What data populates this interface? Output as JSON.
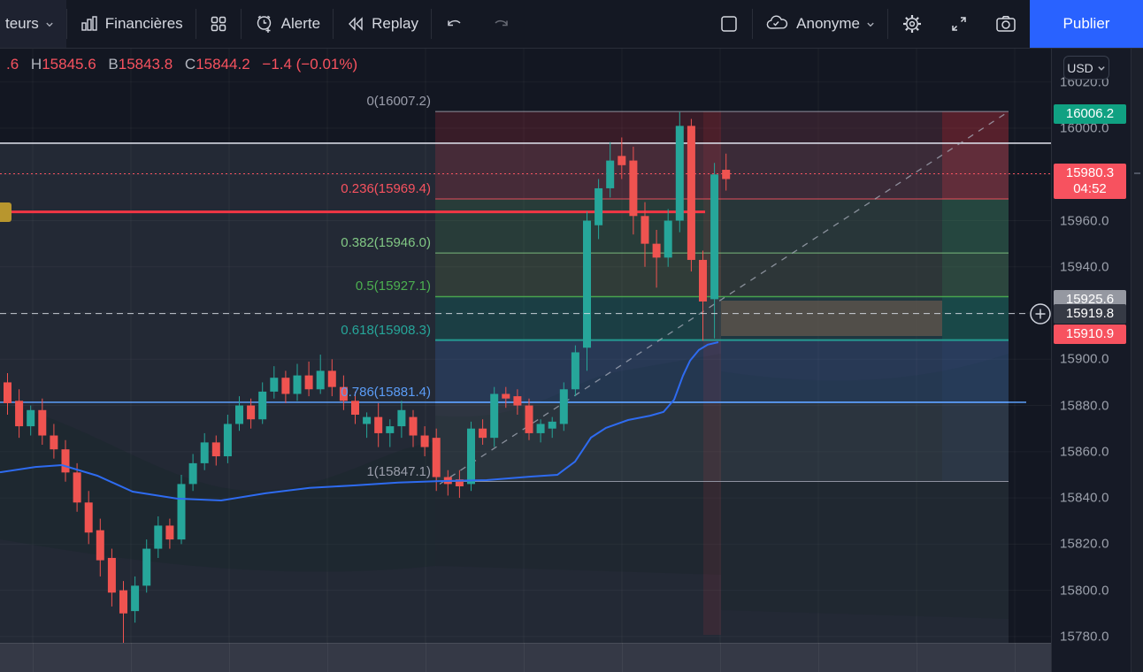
{
  "toolbar": {
    "indicators_label": "teurs",
    "financials_label": "Financières",
    "alert_label": "Alerte",
    "replay_label": "Replay",
    "account_label": "Anonyme",
    "publish_label": "Publier"
  },
  "ohlc": {
    "open_part": ".6",
    "high_key": "H",
    "high": "15845.6",
    "low_key": "B",
    "low": "15843.8",
    "close_key": "C",
    "close": "15844.2",
    "change": "−1.4 (−0.01%)"
  },
  "price_axis": {
    "currency": "USD",
    "ticks": [
      {
        "label": "16020.0",
        "price": 16020
      },
      {
        "label": "16000.0",
        "price": 16000
      },
      {
        "label": "15960.0",
        "price": 15960
      },
      {
        "label": "15940.0",
        "price": 15940
      },
      {
        "label": "15900.0",
        "price": 15900
      },
      {
        "label": "15880.0",
        "price": 15880
      },
      {
        "label": "15860.0",
        "price": 15860
      },
      {
        "label": "15840.0",
        "price": 15840
      },
      {
        "label": "15820.0",
        "price": 15820
      },
      {
        "label": "15800.0",
        "price": 15800
      },
      {
        "label": "15780.0",
        "price": 15780
      }
    ],
    "badges": [
      {
        "name": "high-price-badge",
        "text": "16006.2",
        "price": 16006.2,
        "color": "#10a182"
      },
      {
        "name": "last-price-badge",
        "text": "15980.3",
        "subtext": "04:52",
        "price": 15980.3,
        "color": "#f7525f"
      },
      {
        "name": "countdown-badge",
        "text": "15925.6",
        "price": 15925.6,
        "color": "#9598a1"
      },
      {
        "name": "crosshair-price-badge",
        "text": "15919.8",
        "price": 15919.8,
        "color": "#363a45"
      },
      {
        "name": "alert-price-badge",
        "text": "15910.9",
        "price": 15910.9,
        "color": "#f7525f"
      }
    ]
  },
  "fib": {
    "levels": [
      {
        "label": "0(16007.2)",
        "price": 16007.2,
        "color": "#9b9eab",
        "width": 1
      },
      {
        "label": "0.236(15969.4)",
        "price": 15969.4,
        "color": "#f7525f",
        "width": 1
      },
      {
        "label": "0.382(15946.0)",
        "price": 15946.0,
        "color": "#81c784",
        "width": 1
      },
      {
        "label": "0.5(15927.1)",
        "price": 15927.1,
        "color": "#4caf50",
        "width": 1.6
      },
      {
        "label": "0.618(15908.3)",
        "price": 15908.3,
        "color": "#26a69a",
        "width": 2
      },
      {
        "label": "0.786(15881.4)",
        "price": 15881.4,
        "color": "#5b9cf6",
        "width": 1.6
      },
      {
        "label": "1(15847.1)",
        "price": 15847.1,
        "color": "#9b9eab",
        "width": 1
      }
    ]
  },
  "lines": {
    "red_horizontal_price": 15963.8,
    "dotted_last_price": 15980.3,
    "crosshair_price": 15919.8,
    "white_box_top_price": 15993.5,
    "blue_horizontal_price": 15881.4
  },
  "chart_data": {
    "type": "candlestick",
    "title": "",
    "ylabel": "USD",
    "ylim": [
      15772,
      16025
    ],
    "grid": true,
    "fib_retracement": {
      "from_price": 15847.1,
      "to_price": 16007.2
    },
    "candles": [
      [
        15890,
        15894,
        15876,
        15881
      ],
      [
        15882,
        15887,
        15866,
        15871
      ],
      [
        15871,
        15880,
        15867,
        15878
      ],
      [
        15878,
        15883,
        15863,
        15867
      ],
      [
        15867,
        15872,
        15857,
        15861
      ],
      [
        15861,
        15865,
        15847,
        15851
      ],
      [
        15851,
        15855,
        15834,
        15838
      ],
      [
        15838,
        15843,
        15820,
        15825
      ],
      [
        15826,
        15831,
        15806,
        15813
      ],
      [
        15814,
        15818,
        15793,
        15799
      ],
      [
        15800,
        15804,
        15777,
        15790
      ],
      [
        15791,
        15806,
        15786,
        15802
      ],
      [
        15802,
        15822,
        15799,
        15818
      ],
      [
        15818,
        15832,
        15814,
        15828
      ],
      [
        15828,
        15831,
        15818,
        15822
      ],
      [
        15822,
        15850,
        15820,
        15846
      ],
      [
        15846,
        15859,
        15843,
        15855
      ],
      [
        15855,
        15868,
        15852,
        15864
      ],
      [
        15864,
        15867,
        15854,
        15858
      ],
      [
        15858,
        15876,
        15855,
        15872
      ],
      [
        15872,
        15884,
        15869,
        15880
      ],
      [
        15880,
        15883,
        15870,
        15874
      ],
      [
        15874,
        15890,
        15872,
        15886
      ],
      [
        15886,
        15897,
        15883,
        15892
      ],
      [
        15892,
        15895,
        15881,
        15885
      ],
      [
        15885,
        15898,
        15882,
        15893
      ],
      [
        15893,
        15899,
        15884,
        15887
      ],
      [
        15887,
        15902,
        15885,
        15895
      ],
      [
        15895,
        15900,
        15884,
        15888
      ],
      [
        15888,
        15893,
        15878,
        15882
      ],
      [
        15882,
        15886,
        15872,
        15876
      ],
      [
        15872,
        15877,
        15866,
        15875
      ],
      [
        15875,
        15881,
        15862,
        15868
      ],
      [
        15868,
        15874,
        15862,
        15871
      ],
      [
        15871,
        15882,
        15866,
        15878
      ],
      [
        15875,
        15878,
        15862,
        15867
      ],
      [
        15867,
        15871,
        15858,
        15862
      ],
      [
        15866,
        15870,
        15843,
        15849
      ],
      [
        15849,
        15852,
        15841,
        15846
      ],
      [
        15848,
        15852,
        15840,
        15845
      ],
      [
        15846,
        15873,
        15843,
        15870
      ],
      [
        15870,
        15874,
        15863,
        15866
      ],
      [
        15866,
        15888,
        15862,
        15885
      ],
      [
        15885,
        15888,
        15879,
        15883
      ],
      [
        15884,
        15887,
        15876,
        15880
      ],
      [
        15880,
        15883,
        15865,
        15868
      ],
      [
        15868,
        15874,
        15864,
        15872
      ],
      [
        15870,
        15875,
        15866,
        15873
      ],
      [
        15872,
        15890,
        15869,
        15887
      ],
      [
        15887,
        15906,
        15884,
        15903
      ],
      [
        15905,
        15964,
        15895,
        15960
      ],
      [
        15958,
        15978,
        15952,
        15974
      ],
      [
        15974,
        15994,
        15970,
        15986
      ],
      [
        15988,
        15996,
        15978,
        15984
      ],
      [
        15986,
        15992,
        15954,
        15962
      ],
      [
        15962,
        15968,
        15940,
        15950
      ],
      [
        15950,
        15956,
        15931,
        15944
      ],
      [
        15944,
        15965,
        15940,
        15960
      ],
      [
        15960,
        16007,
        15955,
        16001
      ],
      [
        16001,
        16004,
        15938,
        15943
      ],
      [
        15943,
        15947,
        15908,
        15925
      ],
      [
        15926,
        15985,
        15909,
        15980
      ],
      [
        15982,
        15989,
        15973,
        15978
      ]
    ],
    "ma_blue": [
      [
        0,
        15851.1
      ],
      [
        40,
        15853.4
      ],
      [
        70,
        15854.2
      ],
      [
        110,
        15849.6
      ],
      [
        150,
        15842.7
      ],
      [
        200,
        15839.7
      ],
      [
        250,
        15838.9
      ],
      [
        300,
        15842.0
      ],
      [
        350,
        15844.3
      ],
      [
        400,
        15845.4
      ],
      [
        450,
        15846.6
      ],
      [
        500,
        15847.3
      ],
      [
        550,
        15847.7
      ],
      [
        600,
        15849.2
      ],
      [
        630,
        15850.0
      ],
      [
        650,
        15855.7
      ],
      [
        668,
        15866.1
      ],
      [
        685,
        15870.3
      ],
      [
        710,
        15873.7
      ],
      [
        735,
        15875.6
      ],
      [
        750,
        15877.2
      ],
      [
        762,
        15882.5
      ],
      [
        772,
        15892.9
      ],
      [
        780,
        15899.4
      ],
      [
        790,
        15904.0
      ],
      [
        800,
        15906.3
      ],
      [
        812,
        15907.4
      ]
    ]
  },
  "colors": {
    "candle_up": "#26a69a",
    "candle_down": "#ef5350",
    "ma_blue": "#2e6bf0",
    "accent_blue": "#2962ff",
    "line_red": "#f23645",
    "badge_red": "#f7525f"
  }
}
